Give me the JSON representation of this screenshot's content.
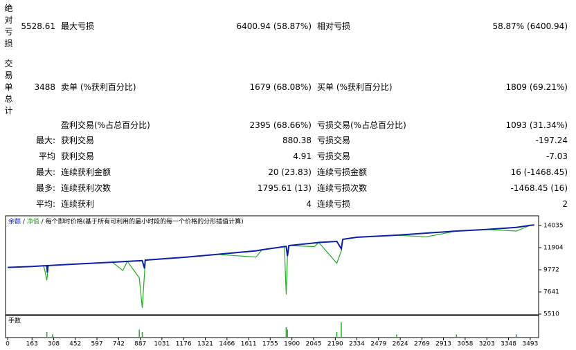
{
  "report": {
    "rows": [
      {
        "side": "绝对亏损",
        "lead": "5528.61",
        "label1": "最大亏损",
        "value1": "6400.94 (58.87%)",
        "label2": "相对亏损",
        "value2": "58.87% (6400.94)"
      },
      {
        "side": "交易单总计",
        "lead": "3488",
        "label1": "卖单 (%获利百分比)",
        "value1": "1679 (68.08%)",
        "label2": "买单 (%获利百分比)",
        "value2": "1809 (69.21%)"
      },
      {
        "label1": "盈利交易(%占总百分比)",
        "value1": "2395 (68.66%)",
        "label2": "亏损交易(%占总百分比)",
        "value2": "1093 (31.34%)"
      },
      {
        "lead": "最大:",
        "label1": "获利交易",
        "value1": "880.38",
        "label2": "亏损交易",
        "value2": "-197.24"
      },
      {
        "lead": "平均",
        "label1": "获利交易",
        "value1": "4.91",
        "label2": "亏损交易",
        "value2": "-7.03"
      },
      {
        "lead": "最大:",
        "label1": "连续获利金额",
        "value1": "20 (23.83)",
        "label2": "连续亏损金额",
        "value2": "16 (-1468.45)"
      },
      {
        "lead": "最多:",
        "label1": "连续获利次数",
        "value1": "1795.61 (13)",
        "label2": "连续亏损次数",
        "value2": "-1468.45 (16)"
      },
      {
        "lead": "平均:",
        "label1": "连续获利",
        "value1": "4",
        "label2": "连续亏损",
        "value2": "2"
      }
    ]
  },
  "chart_data": {
    "type": "line",
    "legend_separator": "/",
    "subtitle": "每个即时价格(基于所有可利用的最小时段的每一个价格的分形插值计算)",
    "x": [
      0,
      150,
      240,
      250,
      262,
      266,
      270,
      500,
      700,
      770,
      800,
      880,
      900,
      915,
      920,
      1200,
      1400,
      1660,
      1700,
      1850,
      1862,
      1870,
      1880,
      2050,
      2080,
      2200,
      2230,
      2240,
      2334,
      2600,
      2800,
      3000,
      3200,
      3400,
      3493,
      3520
    ],
    "series": [
      {
        "name": "余额",
        "color": "#0a1fa8",
        "values": [
          10000,
          10080,
          10150,
          10160,
          10170,
          9500,
          10180,
          10350,
          10500,
          10560,
          10580,
          10640,
          10650,
          9900,
          10700,
          11000,
          11250,
          11600,
          11700,
          12000,
          12020,
          11100,
          12100,
          12350,
          12400,
          12500,
          11800,
          12700,
          12900,
          13100,
          13300,
          13500,
          13650,
          13850,
          14050,
          14080
        ]
      },
      {
        "name": "净值",
        "color": "#1fae1f",
        "values": [
          10000,
          10080,
          10150,
          9600,
          8750,
          9300,
          10180,
          10350,
          10500,
          9700,
          10580,
          9000,
          6100,
          9500,
          10700,
          11000,
          11250,
          11000,
          11700,
          12000,
          7400,
          11000,
          12100,
          12000,
          12400,
          10400,
          11600,
          12700,
          12900,
          13100,
          12950,
          13500,
          13650,
          13500,
          14050,
          14080
        ]
      }
    ],
    "ylim": [
      5443,
      14967
    ],
    "yticks": [
      14035,
      11904,
      9772,
      7641,
      5510
    ],
    "xlim": [
      -14,
      3549
    ],
    "xticks": [
      0,
      163,
      308,
      452,
      597,
      742,
      887,
      1031,
      1176,
      1321,
      1466,
      1611,
      1755,
      1900,
      2045,
      2190,
      2334,
      2479,
      2624,
      2769,
      2913,
      3058,
      3203,
      3348,
      3493
    ],
    "volume": {
      "name": "手数",
      "color": "#1fae1f",
      "x": [
        262,
        300,
        880,
        900,
        1862,
        1870,
        2200,
        2230,
        2600,
        3000,
        3400
      ],
      "values": [
        1,
        0.5,
        1.5,
        1,
        2,
        1.5,
        1,
        3,
        0.5,
        0.5,
        0.5
      ]
    }
  }
}
